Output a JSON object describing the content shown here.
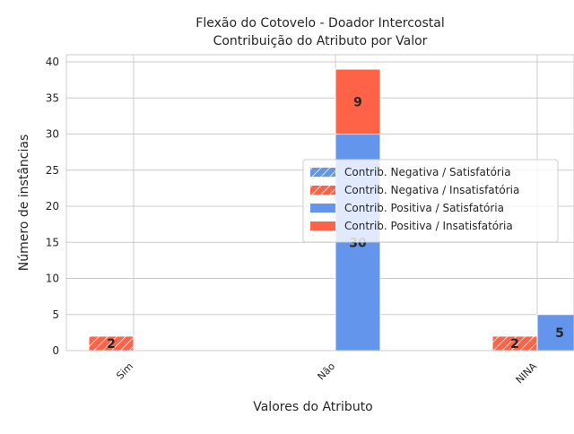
{
  "chart_data": {
    "type": "bar",
    "title_lines": [
      "Flexão do Cotovelo - Doador Intercostal",
      "Contribuição do Atributo por Valor"
    ],
    "xlabel": "Valores do Atributo",
    "ylabel": "Número de instâncias",
    "categories": [
      "Sim",
      "Não",
      "NINA"
    ],
    "ylim": [
      0,
      41
    ],
    "yticks": [
      0,
      5,
      10,
      15,
      20,
      25,
      30,
      35,
      40
    ],
    "grid": true,
    "legend_position": "center-right",
    "groups": [
      {
        "name": "Contrib. Negativa",
        "hatched": true,
        "stack": [
          {
            "name": "Contrib. Negativa / Satisfatória",
            "color": "#6495ed",
            "values": [
              0,
              0,
              0
            ]
          },
          {
            "name": "Contrib. Negativa / Insatisfatória",
            "color": "#ff6347",
            "values": [
              2,
              0,
              2
            ]
          }
        ]
      },
      {
        "name": "Contrib. Positiva",
        "hatched": false,
        "stack": [
          {
            "name": "Contrib. Positiva / Satisfatória",
            "color": "#6495ed",
            "values": [
              0,
              30,
              5
            ]
          },
          {
            "name": "Contrib. Positiva / Insatisfatória",
            "color": "#ff6347",
            "values": [
              0,
              9,
              0
            ]
          }
        ]
      }
    ]
  }
}
